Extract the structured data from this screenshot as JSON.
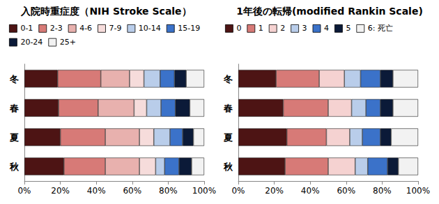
{
  "chart_data": [
    {
      "type": "bar",
      "title": "入院時重症度（NIH Stroke Scale）",
      "orientation": "horizontal",
      "stacked": true,
      "grid": false,
      "legend": "top",
      "categories": [
        "冬",
        "春",
        "夏",
        "秋"
      ],
      "xlim": [
        0,
        100
      ],
      "xticks": [
        {
          "value": 0,
          "label": "0%"
        },
        {
          "value": 20,
          "label": "20%"
        },
        {
          "value": 40,
          "label": "40%"
        },
        {
          "value": 60,
          "label": "60%"
        },
        {
          "value": 80,
          "label": "80%"
        },
        {
          "value": 100,
          "label": "100%"
        }
      ],
      "series": [
        {
          "name": "0-1",
          "color": "#4d1414",
          "values": [
            18.5,
            19,
            20,
            22
          ]
        },
        {
          "name": "2-3",
          "color": "#d77a77",
          "values": [
            24,
            22,
            25,
            23
          ]
        },
        {
          "name": "4-6",
          "color": "#e8b1ae",
          "values": [
            16,
            20,
            19,
            19
          ]
        },
        {
          "name": "7-9",
          "color": "#f6dcdb",
          "values": [
            8,
            7,
            8,
            9
          ]
        },
        {
          "name": "10-14",
          "color": "#b9cdea",
          "values": [
            9,
            8,
            9,
            5
          ]
        },
        {
          "name": "15-19",
          "color": "#3b72c9",
          "values": [
            8,
            8,
            7,
            8
          ]
        },
        {
          "name": "20-24",
          "color": "#0b1a38",
          "values": [
            6.5,
            8,
            6,
            7
          ]
        },
        {
          "name": "25+",
          "color": "#f2f2f2",
          "values": [
            10,
            8,
            6,
            7
          ]
        }
      ]
    },
    {
      "type": "bar",
      "title": "1年後の転帰(modified Rankin Scale)",
      "orientation": "horizontal",
      "stacked": true,
      "grid": false,
      "legend": "top",
      "categories": [
        "冬",
        "春",
        "夏",
        "秋"
      ],
      "xlim": [
        0,
        100
      ],
      "xticks": [
        {
          "value": 0,
          "label": "0%"
        },
        {
          "value": 20,
          "label": "20%"
        },
        {
          "value": 40,
          "label": "40%"
        },
        {
          "value": 60,
          "label": "60%"
        },
        {
          "value": 80,
          "label": "80%"
        },
        {
          "value": 100,
          "label": "100%"
        }
      ],
      "series": [
        {
          "name": "0",
          "color": "#4d1414",
          "values": [
            21,
            25,
            27,
            26
          ]
        },
        {
          "name": "1",
          "color": "#d77a77",
          "values": [
            24,
            25,
            22,
            24
          ]
        },
        {
          "name": "2",
          "color": "#f5d2d1",
          "values": [
            14,
            13,
            13,
            15
          ]
        },
        {
          "name": "3",
          "color": "#b9cdea",
          "values": [
            9,
            8,
            7,
            7
          ]
        },
        {
          "name": "4",
          "color": "#3b72c9",
          "values": [
            11,
            8,
            10,
            11
          ]
        },
        {
          "name": "5",
          "color": "#0b1a38",
          "values": [
            7,
            7,
            6,
            6
          ]
        },
        {
          "name": "6: 死亡",
          "color": "#f2f2f2",
          "values": [
            14,
            14,
            15,
            11
          ]
        }
      ]
    }
  ]
}
